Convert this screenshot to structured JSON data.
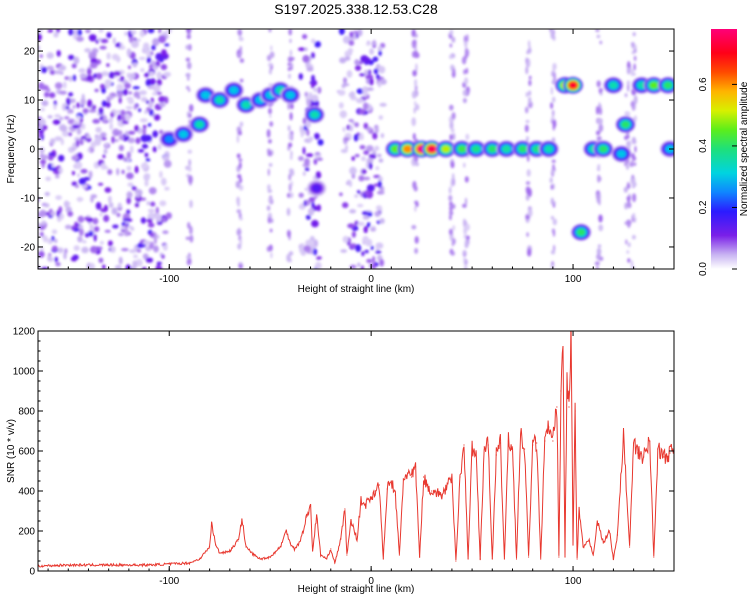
{
  "chart_data": [
    {
      "type": "heatmap",
      "title": "S197.2025.338.12.53.C28",
      "xlabel": "Height of straight line (km)",
      "ylabel": "Frequency (Hz)",
      "xlim": [
        -165,
        150
      ],
      "ylim": [
        -24.5,
        24.5
      ],
      "xticks": [
        -100,
        0,
        100
      ],
      "xtick_labels": [
        "-100",
        "0",
        "100"
      ],
      "yticks": [
        -20,
        -10,
        0,
        10,
        20
      ],
      "ytick_labels": [
        "-20",
        "-10",
        "0",
        "10",
        "20"
      ],
      "colorbar": {
        "label": "Normalized spectral amplitude",
        "range": [
          0,
          0.78
        ],
        "ticks": [
          0,
          0.2,
          0.4,
          0.6
        ],
        "tick_labels": [
          "0.0",
          "0.2",
          "0.4",
          "0.6"
        ],
        "colormap": "rainbow (white-violet-blue-cyan-green-yellow-orange-red-magenta)"
      },
      "noise_regions_x": [
        [
          -165,
          -100
        ],
        [
          -35,
          -25
        ],
        [
          -15,
          6
        ]
      ],
      "sparse_streaks_x": [
        -90,
        -65,
        -50,
        -40,
        22,
        40,
        47,
        78,
        90,
        113,
        127,
        130
      ],
      "features": [
        {
          "x": -100,
          "y": 2,
          "amp": 0.25
        },
        {
          "x": -93,
          "y": 3,
          "amp": 0.3
        },
        {
          "x": -85,
          "y": 5,
          "amp": 0.35
        },
        {
          "x": -82,
          "y": 11,
          "amp": 0.3
        },
        {
          "x": -75,
          "y": 10,
          "amp": 0.35
        },
        {
          "x": -68,
          "y": 12,
          "amp": 0.3
        },
        {
          "x": -62,
          "y": 9,
          "amp": 0.35
        },
        {
          "x": -55,
          "y": 10,
          "amp": 0.3
        },
        {
          "x": -50,
          "y": 11,
          "amp": 0.3
        },
        {
          "x": -45,
          "y": 12,
          "amp": 0.35
        },
        {
          "x": -40,
          "y": 11,
          "amp": 0.3
        },
        {
          "x": -28,
          "y": 7,
          "amp": 0.35
        },
        {
          "x": -27,
          "y": -8,
          "amp": 0.15
        },
        {
          "x": 12,
          "y": 0,
          "amp": 0.45
        },
        {
          "x": 18,
          "y": 0,
          "amp": 0.6
        },
        {
          "x": 25,
          "y": 0,
          "amp": 0.78
        },
        {
          "x": 30,
          "y": 0,
          "amp": 0.75
        },
        {
          "x": 37,
          "y": 0,
          "amp": 0.5
        },
        {
          "x": 45,
          "y": 0,
          "amp": 0.42
        },
        {
          "x": 52,
          "y": 0,
          "amp": 0.38
        },
        {
          "x": 60,
          "y": 0,
          "amp": 0.4
        },
        {
          "x": 67,
          "y": 0,
          "amp": 0.36
        },
        {
          "x": 75,
          "y": 0,
          "amp": 0.4
        },
        {
          "x": 82,
          "y": 0,
          "amp": 0.38
        },
        {
          "x": 88,
          "y": 0,
          "amp": 0.35
        },
        {
          "x": 96,
          "y": 13,
          "amp": 0.5
        },
        {
          "x": 100,
          "y": 13,
          "amp": 0.72
        },
        {
          "x": 110,
          "y": 0,
          "amp": 0.35
        },
        {
          "x": 115,
          "y": 0,
          "amp": 0.4
        },
        {
          "x": 104,
          "y": -17,
          "amp": 0.4
        },
        {
          "x": 120,
          "y": 13,
          "amp": 0.35
        },
        {
          "x": 124,
          "y": -1,
          "amp": 0.3
        },
        {
          "x": 126,
          "y": 5,
          "amp": 0.4
        },
        {
          "x": 134,
          "y": 13,
          "amp": 0.35
        },
        {
          "x": 140,
          "y": 13,
          "amp": 0.45
        },
        {
          "x": 147,
          "y": 13,
          "amp": 0.4
        },
        {
          "x": 148,
          "y": 0,
          "amp": 0.3
        }
      ]
    },
    {
      "type": "line",
      "xlabel": "Height of straight line (km)",
      "ylabel": "SNR (10 * v/v)",
      "xlim": [
        -165,
        150
      ],
      "ylim": [
        0,
        1200
      ],
      "xticks": [
        -100,
        0,
        100
      ],
      "xtick_labels": [
        "-100",
        "0",
        "100"
      ],
      "yticks": [
        0,
        200,
        400,
        600,
        800,
        1000,
        1200
      ],
      "ytick_labels": [
        "0",
        "200",
        "400",
        "600",
        "800",
        "1000",
        "1200"
      ],
      "series": [
        {
          "name": "SNR",
          "color": "#e8382f",
          "x": [
            -165,
            -150,
            -130,
            -110,
            -100,
            -90,
            -85,
            -80,
            -79,
            -77,
            -75,
            -70,
            -66,
            -64,
            -62,
            -58,
            -55,
            -50,
            -45,
            -42,
            -40,
            -38,
            -35,
            -32,
            -30,
            -29,
            -27,
            -25,
            -22,
            -20,
            -18,
            -15,
            -13,
            -12,
            -10,
            -7,
            -5,
            -3,
            0,
            2,
            4,
            6,
            8,
            10,
            12,
            14,
            16,
            18,
            20,
            22,
            24,
            26,
            28,
            30,
            35,
            40,
            42,
            44,
            46,
            48,
            50,
            52,
            54,
            56,
            58,
            60,
            62,
            64,
            66,
            68,
            70,
            72,
            74,
            76,
            78,
            80,
            82,
            84,
            86,
            88,
            90,
            92,
            93,
            94,
            95,
            96,
            97,
            98,
            99,
            100,
            101,
            102,
            103,
            105,
            108,
            110,
            112,
            115,
            118,
            120,
            122,
            125,
            128,
            130,
            132,
            135,
            138,
            140,
            142,
            145,
            148,
            150
          ],
          "y": [
            25,
            30,
            30,
            30,
            35,
            40,
            60,
            120,
            240,
            130,
            90,
            100,
            150,
            260,
            120,
            80,
            60,
            70,
            120,
            200,
            140,
            110,
            150,
            270,
            330,
            100,
            280,
            80,
            60,
            110,
            40,
            160,
            310,
            80,
            250,
            160,
            350,
            330,
            370,
            400,
            430,
            60,
            410,
            450,
            380,
            80,
            460,
            490,
            470,
            520,
            70,
            470,
            420,
            400,
            380,
            460,
            50,
            470,
            630,
            60,
            610,
            590,
            60,
            620,
            630,
            60,
            580,
            640,
            60,
            650,
            620,
            60,
            680,
            610,
            70,
            630,
            640,
            60,
            650,
            720,
            650,
            820,
            70,
            900,
            1120,
            70,
            950,
            820,
            1200,
            130,
            800,
            60,
            300,
            120,
            150,
            80,
            250,
            140,
            200,
            60,
            180,
            680,
            120,
            640,
            590,
            570,
            650,
            70,
            610,
            570,
            590,
            600
          ]
        }
      ]
    }
  ]
}
